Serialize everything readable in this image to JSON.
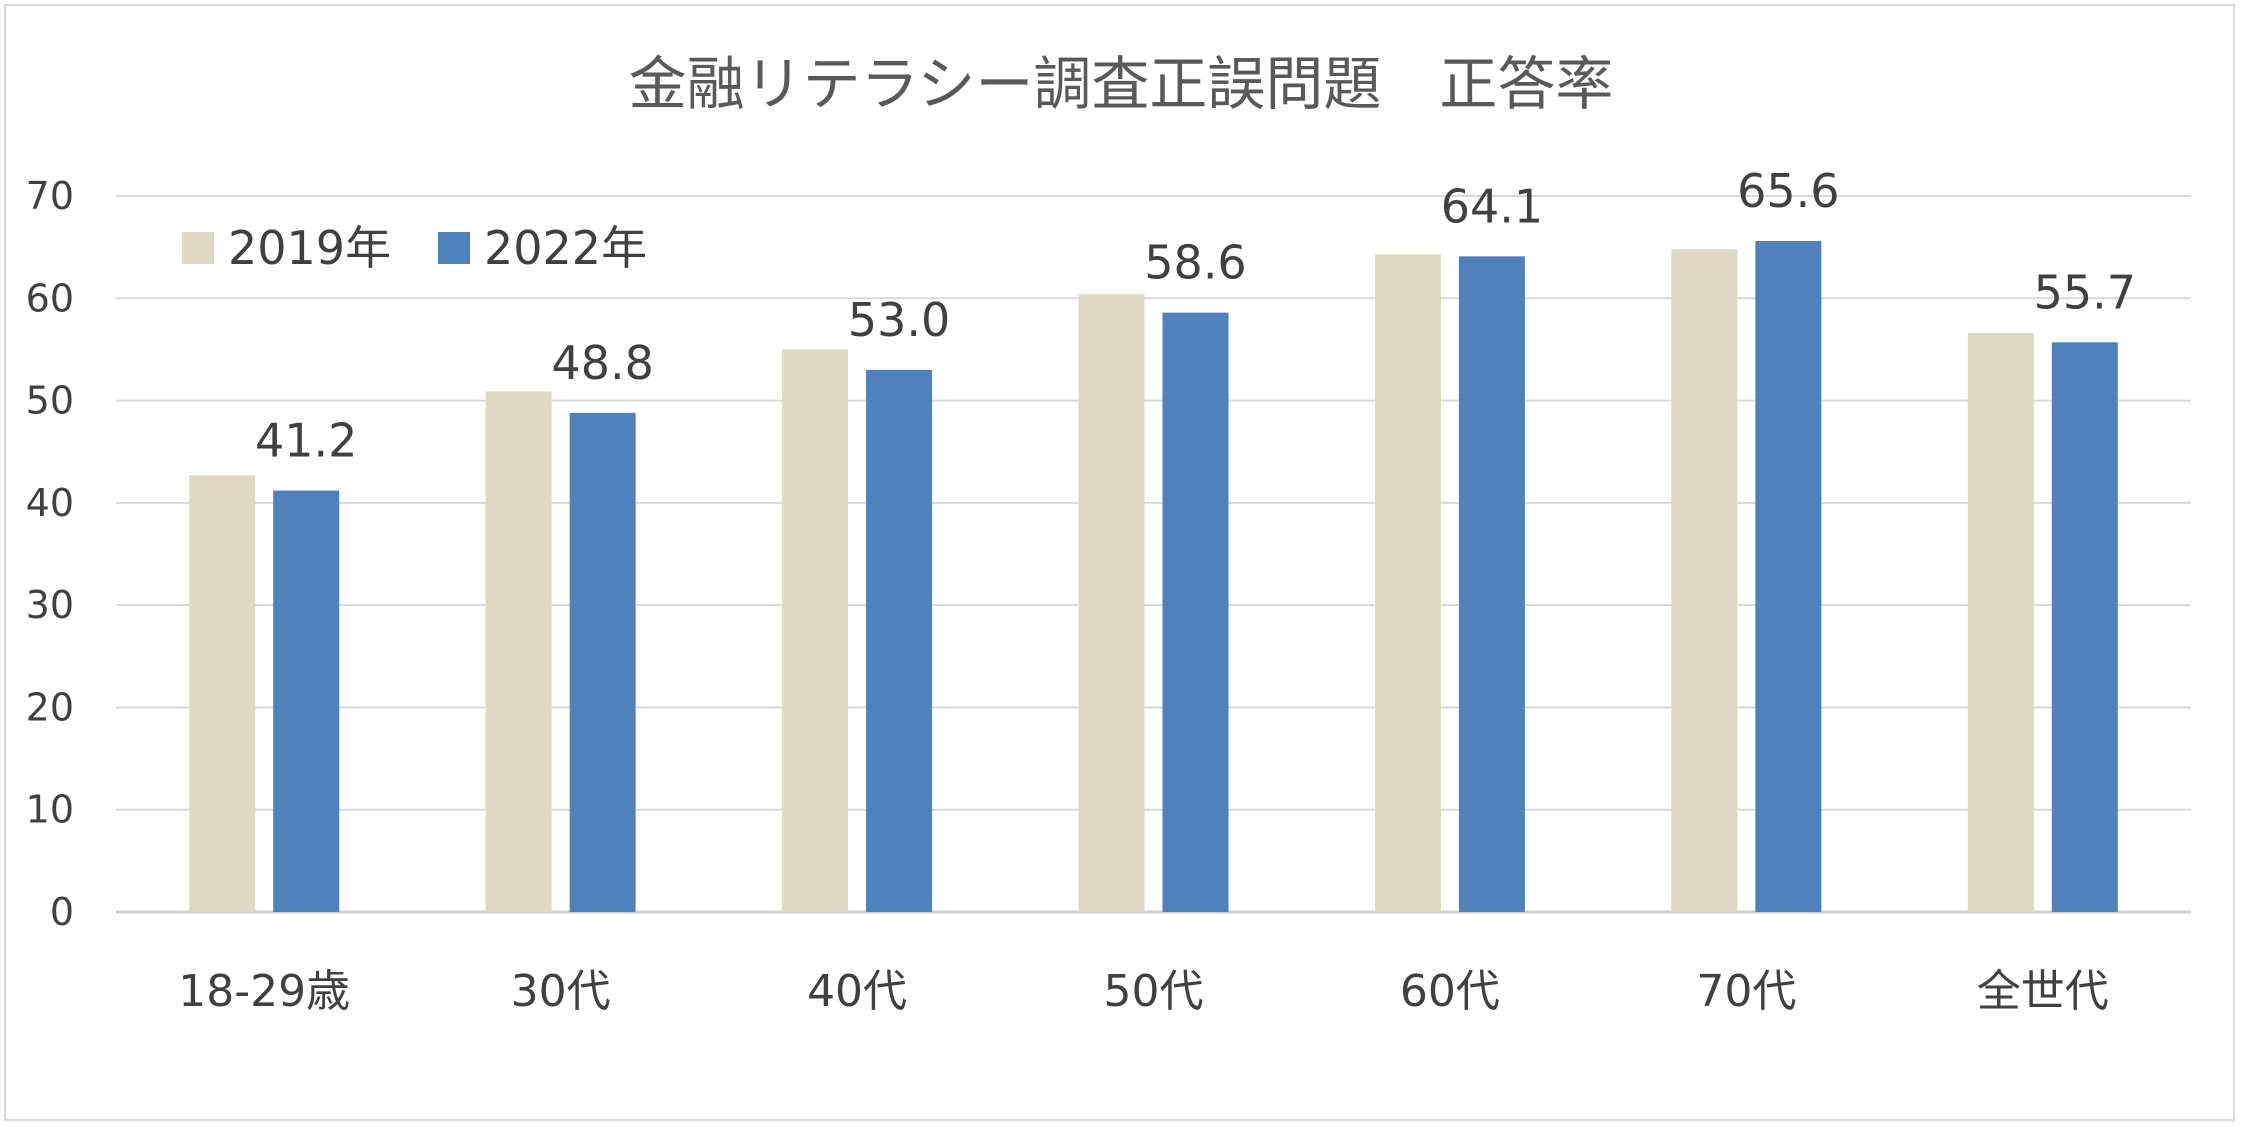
{
  "chart_data": {
    "type": "bar",
    "title": "金融リテラシー調査正誤問題　正答率",
    "xlabel": "",
    "ylabel": "",
    "ylim": [
      0,
      70
    ],
    "yticks": [
      0,
      10,
      20,
      30,
      40,
      50,
      60,
      70
    ],
    "grid": true,
    "legend_position": "top-left",
    "categories": [
      "18-29歳",
      "30代",
      "40代",
      "50代",
      "60代",
      "70代",
      "全世代"
    ],
    "series": [
      {
        "name": "2019年",
        "color": "#ddd9c3",
        "values": [
          42.7,
          50.9,
          55.0,
          60.4,
          64.3,
          64.8,
          56.6
        ],
        "show_labels": false
      },
      {
        "name": "2022年",
        "color": "#4f81bd",
        "values": [
          41.2,
          48.8,
          53.0,
          58.6,
          64.1,
          65.6,
          55.7
        ],
        "show_labels": true
      }
    ],
    "data_labels": [
      "41.2",
      "48.8",
      "53.0",
      "58.6",
      "64.1",
      "65.6",
      "55.7"
    ]
  }
}
